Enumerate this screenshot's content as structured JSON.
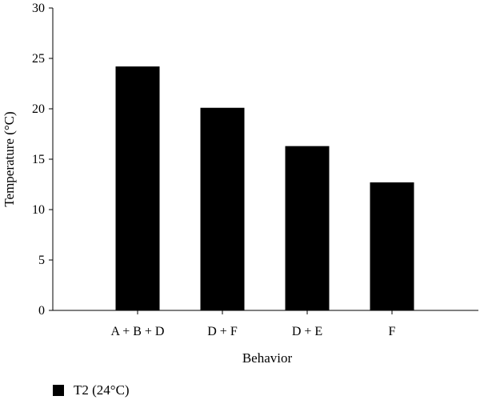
{
  "chart_data": {
    "type": "bar",
    "categories": [
      "A + B + D",
      "D + F",
      "D + E",
      "F"
    ],
    "series": [
      {
        "name": "T2 (24°C)",
        "values": [
          24.2,
          20.1,
          16.3,
          12.7
        ],
        "color": "#000000"
      }
    ],
    "title": "",
    "xlabel": "Behavior",
    "ylabel": "Temperature (°C)",
    "ylim": [
      0,
      30
    ],
    "yticks": [
      0,
      5,
      10,
      15,
      20,
      25,
      30
    ],
    "grid": false,
    "legend_position": "bottom-left"
  }
}
